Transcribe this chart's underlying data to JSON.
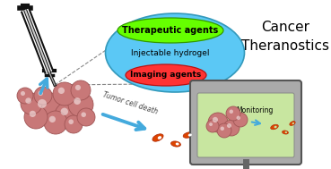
{
  "bg_color": "#ffffff",
  "hydrogel_color": "#5bc8f5",
  "hydrogel_edge": "#3399bb",
  "therapeutic_color": "#66ff00",
  "therapeutic_edge": "#339900",
  "imaging_color": "#ff3333",
  "imaging_edge": "#bb1111",
  "text_therapeutic": "Therapeutic agents",
  "text_hydrogel": "Injectable hydrogel",
  "text_imaging": "Imaging agents",
  "text_cancer": "Cancer\nTheranostics",
  "text_monitoring": "Monitoring",
  "text_tumor": "Tumor cell death",
  "tumor_color": "#c87878",
  "tumor_edge": "#a05555",
  "tumor_highlight": "#ffffff",
  "fragment_color": "#dd4400",
  "fragment_edge": "#aa2200",
  "arrow_color": "#44aadd",
  "monitor_bezel": "#aaaaaa",
  "monitor_edge": "#555555",
  "monitor_screen": "#c8e6a0",
  "monitor_screen_edge": "#888888",
  "monitor_stand": "#666666",
  "dashed_color": "#888888",
  "syringe_dark": "#111111",
  "syringe_light": "#888888"
}
